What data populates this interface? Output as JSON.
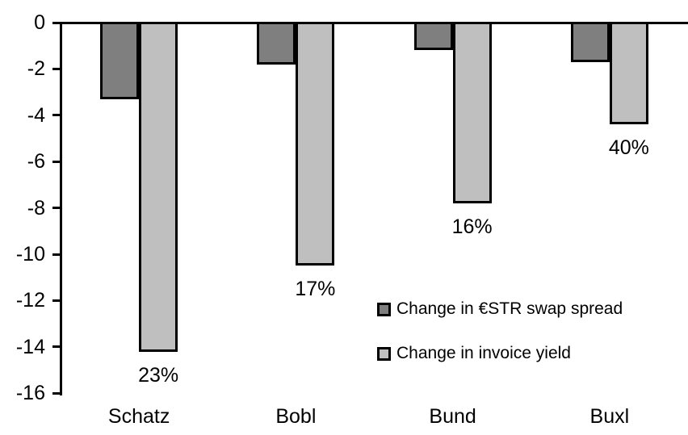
{
  "chart_data": {
    "type": "bar",
    "title": "",
    "xlabel": "",
    "ylabel": "",
    "categories": [
      "Schatz",
      "Bobl",
      "Bund",
      "Buxl"
    ],
    "series": [
      {
        "name": "Change in €STR swap spread",
        "color": "#7F7F7F",
        "values": [
          -3.3,
          -1.8,
          -1.2,
          -1.7
        ]
      },
      {
        "name": "Change in invoice yield",
        "color": "#BFBFBF",
        "values": [
          -14.2,
          -10.5,
          -7.8,
          -4.4
        ],
        "point_labels": [
          "23%",
          "17%",
          "16%",
          "40%"
        ]
      }
    ],
    "ylim": [
      -16,
      0
    ],
    "yticks": [
      0,
      -2,
      -4,
      -6,
      -8,
      -10,
      -12,
      -14,
      -16
    ],
    "grid": false,
    "bar_border_color": "#000000",
    "legend_position": "inside-right"
  }
}
